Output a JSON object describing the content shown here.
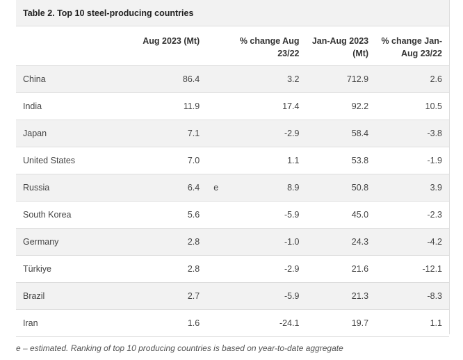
{
  "table": {
    "title": "Table 2. Top 10 steel-producing countries",
    "headers": {
      "country": "",
      "aug2023": "Aug 2023 (Mt)",
      "note": "",
      "pct_aug": "% change Aug 23/22",
      "janaug2023": "Jan-Aug 2023 (Mt)",
      "pct_ytd": "% change Jan-Aug 23/22"
    },
    "rows": [
      {
        "country": "China",
        "aug2023": "86.4",
        "note": "",
        "pct_aug": "3.2",
        "janaug2023": "712.9",
        "pct_ytd": "2.6"
      },
      {
        "country": "India",
        "aug2023": "11.9",
        "note": "",
        "pct_aug": "17.4",
        "janaug2023": "92.2",
        "pct_ytd": "10.5"
      },
      {
        "country": "Japan",
        "aug2023": "7.1",
        "note": "",
        "pct_aug": "-2.9",
        "janaug2023": "58.4",
        "pct_ytd": "-3.8"
      },
      {
        "country": "United States",
        "aug2023": "7.0",
        "note": "",
        "pct_aug": "1.1",
        "janaug2023": "53.8",
        "pct_ytd": "-1.9"
      },
      {
        "country": "Russia",
        "aug2023": "6.4",
        "note": "e",
        "pct_aug": "8.9",
        "janaug2023": "50.8",
        "pct_ytd": "3.9"
      },
      {
        "country": "South Korea",
        "aug2023": "5.6",
        "note": "",
        "pct_aug": "-5.9",
        "janaug2023": "45.0",
        "pct_ytd": "-2.3"
      },
      {
        "country": "Germany",
        "aug2023": "2.8",
        "note": "",
        "pct_aug": "-1.0",
        "janaug2023": "24.3",
        "pct_ytd": "-4.2"
      },
      {
        "country": "Türkiye",
        "aug2023": "2.8",
        "note": "",
        "pct_aug": "-2.9",
        "janaug2023": "21.6",
        "pct_ytd": "-12.1"
      },
      {
        "country": "Brazil",
        "aug2023": "2.7",
        "note": "",
        "pct_aug": "-5.9",
        "janaug2023": "21.3",
        "pct_ytd": "-8.3"
      },
      {
        "country": "Iran",
        "aug2023": "1.6",
        "note": "",
        "pct_aug": "-24.1",
        "janaug2023": "19.7",
        "pct_ytd": "1.1"
      }
    ]
  },
  "footnote": "e – estimated. Ranking of top 10 producing countries is based on year-to-date aggregate"
}
